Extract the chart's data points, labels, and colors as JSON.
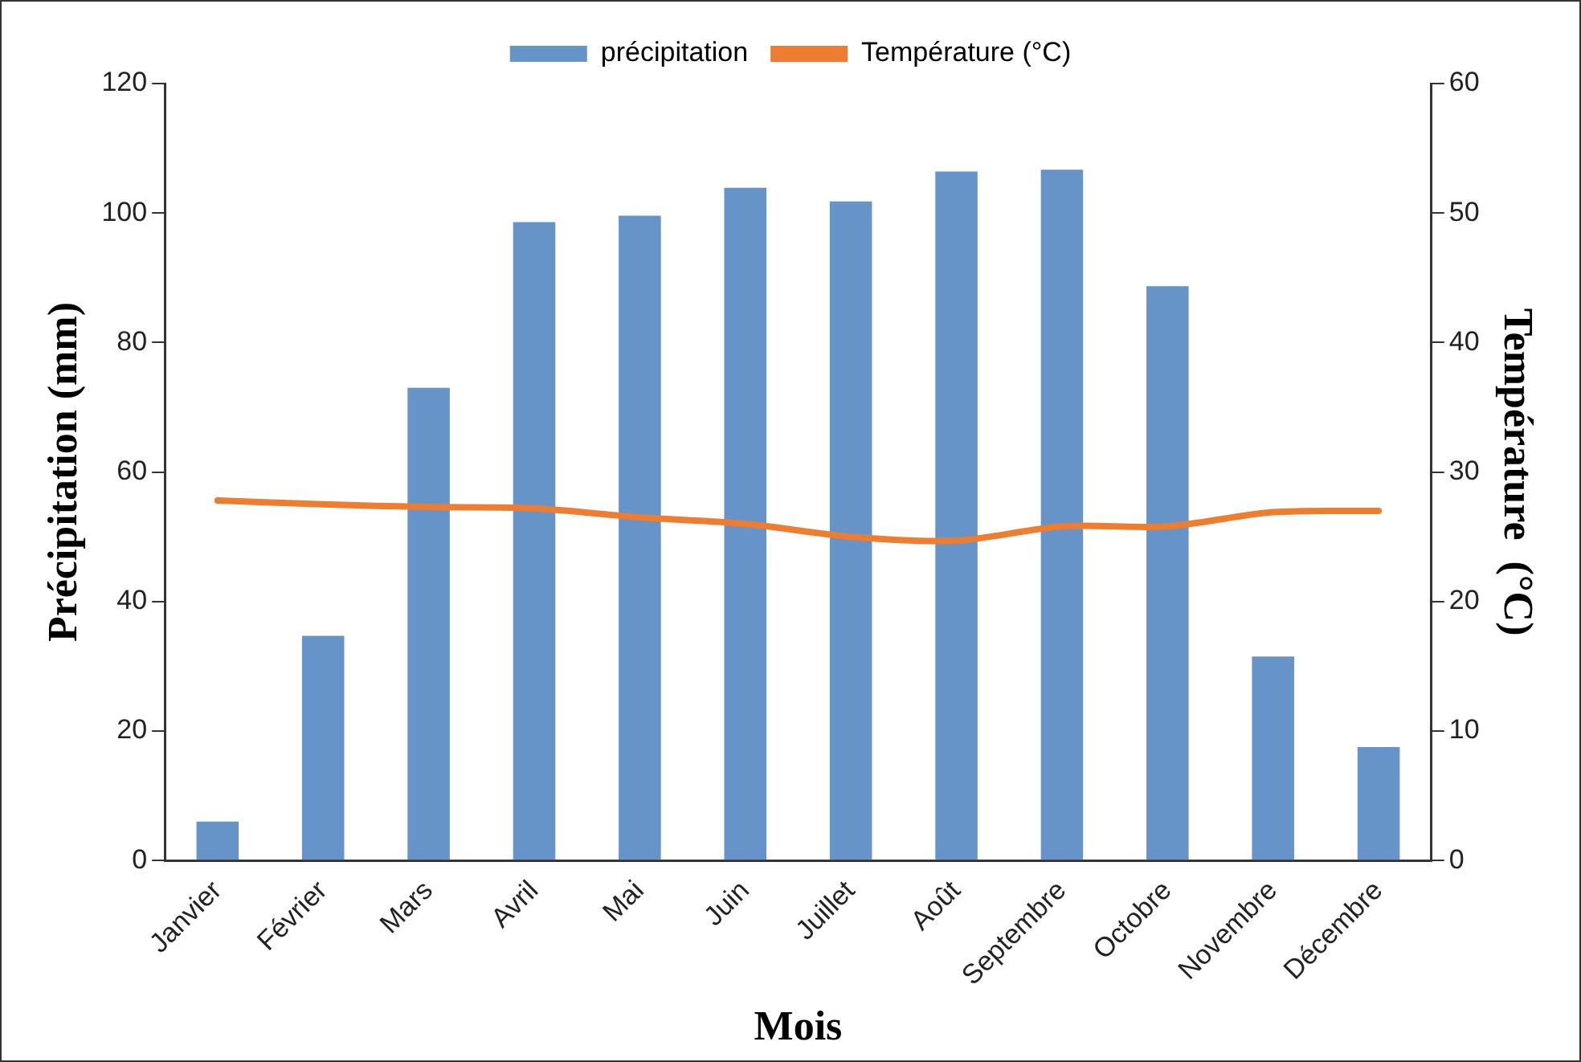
{
  "chart_data": {
    "type": "bar",
    "xlabel": "Mois",
    "ylabel": "Précipitation (mm)",
    "y2label": "Température  (°C)",
    "categories": [
      "Janvier",
      "Février",
      "Mars",
      "Avril",
      "Mai",
      "Juin",
      "Juillet",
      "Août",
      "Septembre",
      "Octobre",
      "Novembre",
      "Décembre"
    ],
    "series": [
      {
        "name": "précipitation",
        "color": "#6694c9",
        "values": [
          6.0,
          34.7,
          73.0,
          98.6,
          99.6,
          103.9,
          101.8,
          106.4,
          106.7,
          88.7,
          31.5,
          17.5
        ]
      },
      {
        "name": "Température (°C)",
        "type": "line",
        "axis": "y2",
        "color": "#ed7d31",
        "values": [
          27.8,
          27.5,
          27.3,
          27.2,
          26.5,
          26.0,
          25.0,
          24.7,
          25.8,
          25.8,
          26.9,
          27.0
        ]
      }
    ],
    "ylim": [
      0,
      120
    ],
    "yticks": [
      0,
      20,
      40,
      60,
      80,
      100,
      120
    ],
    "y2lim": [
      0,
      60
    ],
    "y2ticks": [
      0,
      10,
      20,
      30,
      40,
      50,
      60
    ],
    "grid": false,
    "legend": "top",
    "marker": "none",
    "line_style": "solid"
  }
}
